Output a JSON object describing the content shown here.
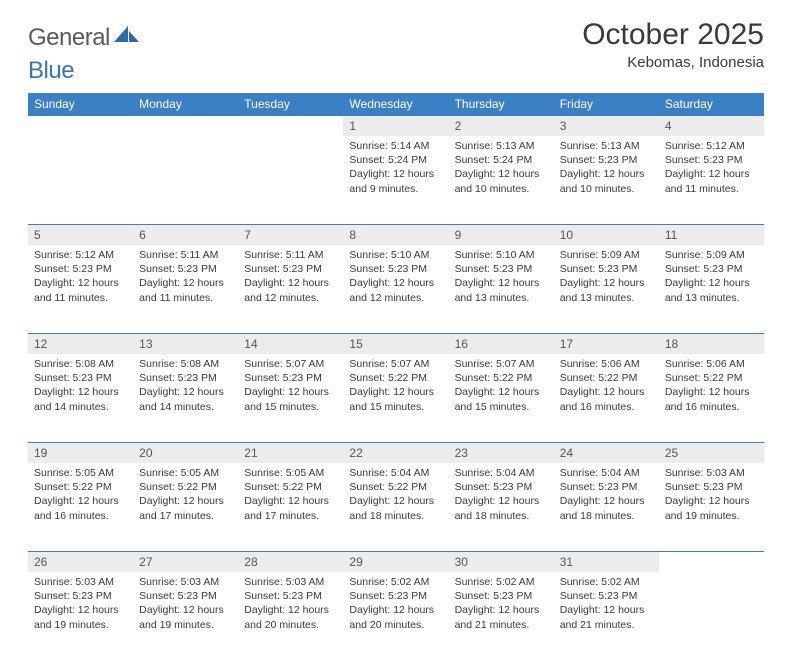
{
  "logo": {
    "general": "General",
    "blue": "Blue"
  },
  "title": "October 2025",
  "subtitle": "Kebomas, Indonesia",
  "colors": {
    "header_bg": "#3b7fc4",
    "header_text": "#ffffff",
    "daynum_bg": "#ececec",
    "rule": "#3b7fc4",
    "text": "#3a3a3a"
  },
  "weekdays": [
    "Sunday",
    "Monday",
    "Tuesday",
    "Wednesday",
    "Thursday",
    "Friday",
    "Saturday"
  ],
  "weeks": [
    [
      null,
      null,
      null,
      {
        "n": "1",
        "sunrise": "5:14 AM",
        "sunset": "5:24 PM",
        "daylight": "12 hours and 9 minutes."
      },
      {
        "n": "2",
        "sunrise": "5:13 AM",
        "sunset": "5:24 PM",
        "daylight": "12 hours and 10 minutes."
      },
      {
        "n": "3",
        "sunrise": "5:13 AM",
        "sunset": "5:23 PM",
        "daylight": "12 hours and 10 minutes."
      },
      {
        "n": "4",
        "sunrise": "5:12 AM",
        "sunset": "5:23 PM",
        "daylight": "12 hours and 11 minutes."
      }
    ],
    [
      {
        "n": "5",
        "sunrise": "5:12 AM",
        "sunset": "5:23 PM",
        "daylight": "12 hours and 11 minutes."
      },
      {
        "n": "6",
        "sunrise": "5:11 AM",
        "sunset": "5:23 PM",
        "daylight": "12 hours and 11 minutes."
      },
      {
        "n": "7",
        "sunrise": "5:11 AM",
        "sunset": "5:23 PM",
        "daylight": "12 hours and 12 minutes."
      },
      {
        "n": "8",
        "sunrise": "5:10 AM",
        "sunset": "5:23 PM",
        "daylight": "12 hours and 12 minutes."
      },
      {
        "n": "9",
        "sunrise": "5:10 AM",
        "sunset": "5:23 PM",
        "daylight": "12 hours and 13 minutes."
      },
      {
        "n": "10",
        "sunrise": "5:09 AM",
        "sunset": "5:23 PM",
        "daylight": "12 hours and 13 minutes."
      },
      {
        "n": "11",
        "sunrise": "5:09 AM",
        "sunset": "5:23 PM",
        "daylight": "12 hours and 13 minutes."
      }
    ],
    [
      {
        "n": "12",
        "sunrise": "5:08 AM",
        "sunset": "5:23 PM",
        "daylight": "12 hours and 14 minutes."
      },
      {
        "n": "13",
        "sunrise": "5:08 AM",
        "sunset": "5:23 PM",
        "daylight": "12 hours and 14 minutes."
      },
      {
        "n": "14",
        "sunrise": "5:07 AM",
        "sunset": "5:23 PM",
        "daylight": "12 hours and 15 minutes."
      },
      {
        "n": "15",
        "sunrise": "5:07 AM",
        "sunset": "5:22 PM",
        "daylight": "12 hours and 15 minutes."
      },
      {
        "n": "16",
        "sunrise": "5:07 AM",
        "sunset": "5:22 PM",
        "daylight": "12 hours and 15 minutes."
      },
      {
        "n": "17",
        "sunrise": "5:06 AM",
        "sunset": "5:22 PM",
        "daylight": "12 hours and 16 minutes."
      },
      {
        "n": "18",
        "sunrise": "5:06 AM",
        "sunset": "5:22 PM",
        "daylight": "12 hours and 16 minutes."
      }
    ],
    [
      {
        "n": "19",
        "sunrise": "5:05 AM",
        "sunset": "5:22 PM",
        "daylight": "12 hours and 16 minutes."
      },
      {
        "n": "20",
        "sunrise": "5:05 AM",
        "sunset": "5:22 PM",
        "daylight": "12 hours and 17 minutes."
      },
      {
        "n": "21",
        "sunrise": "5:05 AM",
        "sunset": "5:22 PM",
        "daylight": "12 hours and 17 minutes."
      },
      {
        "n": "22",
        "sunrise": "5:04 AM",
        "sunset": "5:22 PM",
        "daylight": "12 hours and 18 minutes."
      },
      {
        "n": "23",
        "sunrise": "5:04 AM",
        "sunset": "5:23 PM",
        "daylight": "12 hours and 18 minutes."
      },
      {
        "n": "24",
        "sunrise": "5:04 AM",
        "sunset": "5:23 PM",
        "daylight": "12 hours and 18 minutes."
      },
      {
        "n": "25",
        "sunrise": "5:03 AM",
        "sunset": "5:23 PM",
        "daylight": "12 hours and 19 minutes."
      }
    ],
    [
      {
        "n": "26",
        "sunrise": "5:03 AM",
        "sunset": "5:23 PM",
        "daylight": "12 hours and 19 minutes."
      },
      {
        "n": "27",
        "sunrise": "5:03 AM",
        "sunset": "5:23 PM",
        "daylight": "12 hours and 19 minutes."
      },
      {
        "n": "28",
        "sunrise": "5:03 AM",
        "sunset": "5:23 PM",
        "daylight": "12 hours and 20 minutes."
      },
      {
        "n": "29",
        "sunrise": "5:02 AM",
        "sunset": "5:23 PM",
        "daylight": "12 hours and 20 minutes."
      },
      {
        "n": "30",
        "sunrise": "5:02 AM",
        "sunset": "5:23 PM",
        "daylight": "12 hours and 21 minutes."
      },
      {
        "n": "31",
        "sunrise": "5:02 AM",
        "sunset": "5:23 PM",
        "daylight": "12 hours and 21 minutes."
      },
      null
    ]
  ],
  "labels": {
    "sunrise": "Sunrise: ",
    "sunset": "Sunset: ",
    "daylight": "Daylight: "
  }
}
